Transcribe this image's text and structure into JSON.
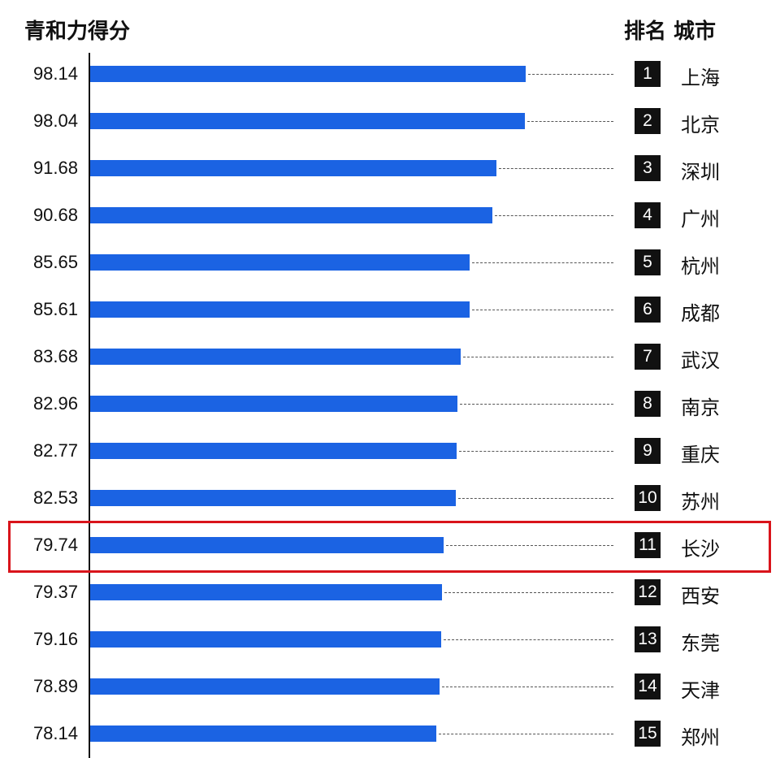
{
  "chart_data": {
    "type": "bar",
    "orientation": "horizontal",
    "title": "青和力得分",
    "right_header": "排名 城市",
    "categories": [
      "上海",
      "北京",
      "深圳",
      "广州",
      "杭州",
      "成都",
      "武汉",
      "南京",
      "重庆",
      "苏州",
      "长沙",
      "西安",
      "东莞",
      "天津",
      "郑州"
    ],
    "ranks": [
      "1",
      "2",
      "3",
      "4",
      "5",
      "6",
      "7",
      "8",
      "9",
      "10",
      "11",
      "12",
      "13",
      "14",
      "15"
    ],
    "values": [
      98.14,
      98.04,
      91.68,
      90.68,
      85.65,
      85.61,
      83.68,
      82.96,
      82.77,
      82.53,
      79.74,
      79.37,
      79.16,
      78.89,
      78.14
    ],
    "value_labels": [
      "98.14",
      "98.04",
      "91.68",
      "90.68",
      "85.65",
      "85.61",
      "83.68",
      "82.96",
      "82.77",
      "82.53",
      "79.74",
      "79.37",
      "79.16",
      "78.89",
      "78.14"
    ],
    "xlim": [
      0,
      100
    ],
    "highlight_index": 10,
    "colors": {
      "bar": "#1b63e3",
      "highlight": "#d9141b"
    }
  }
}
